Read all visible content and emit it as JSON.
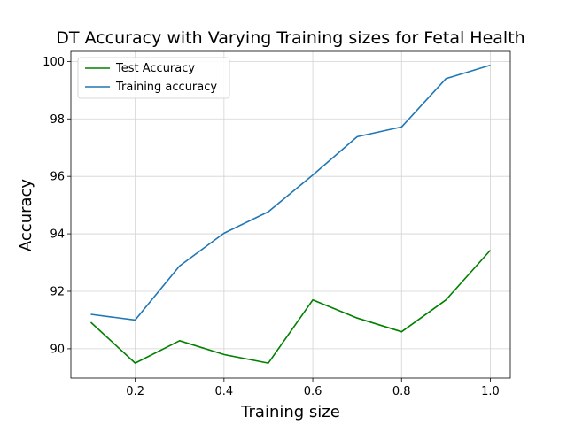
{
  "chart_data": {
    "type": "line",
    "title": "DT Accuracy with Varying Training sizes for Fetal Health",
    "xlabel": "Training size",
    "ylabel": "Accuracy",
    "x": [
      0.1,
      0.2,
      0.3,
      0.4,
      0.5,
      0.6,
      0.7,
      0.8,
      0.9,
      1.0
    ],
    "xlim": [
      0.055,
      1.045
    ],
    "ylim": [
      88.98,
      100.35
    ],
    "xticks": [
      0.2,
      0.4,
      0.6,
      0.8,
      1.0
    ],
    "xtick_labels": [
      "0.2",
      "0.4",
      "0.6",
      "0.8",
      "1.0"
    ],
    "yticks": [
      90,
      92,
      94,
      96,
      98,
      100
    ],
    "ytick_labels": [
      "90",
      "92",
      "94",
      "96",
      "98",
      "100"
    ],
    "grid": true,
    "legend_position": "top-left",
    "series": [
      {
        "name": "Test Accuracy",
        "color": "#008000",
        "values": [
          90.92,
          89.5,
          90.28,
          89.8,
          89.5,
          91.7,
          91.07,
          90.59,
          91.7,
          93.43
        ]
      },
      {
        "name": "Training accuracy",
        "color": "#1f77b4",
        "values": [
          91.2,
          91.0,
          92.88,
          94.02,
          94.77,
          96.05,
          97.38,
          97.72,
          99.4,
          99.87
        ]
      }
    ]
  }
}
